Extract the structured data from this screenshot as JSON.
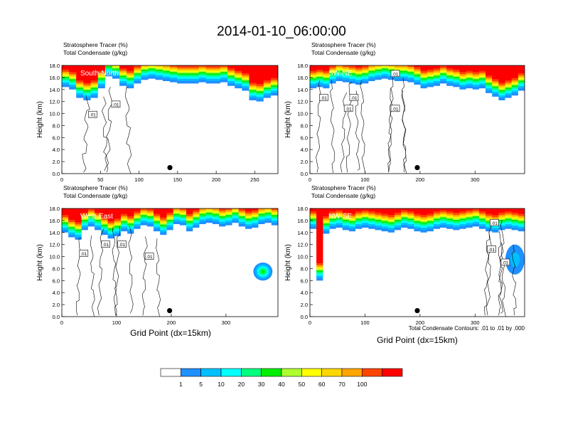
{
  "title": "2014-01-10_06:00:00",
  "variable_lines": [
    "Stratosphere Tracer   (%)",
    "Total Condensate   (g/kg)"
  ],
  "ylabel": "Height (km)",
  "xlabel": "Grid Point (dx=15km)",
  "contour_note": "Total Condensate Contours: .01 to .01 by .000",
  "colors": {
    "bins": [
      "#ffffff",
      "#1e90ff",
      "#00bfff",
      "#00ffff",
      "#00ff7f",
      "#00ee00",
      "#adff2f",
      "#ffff00",
      "#ffd700",
      "#ffa500",
      "#ff4500",
      "#ff0000"
    ],
    "contour": "#000000",
    "marker": "#000000"
  },
  "colorbar": {
    "labels": [
      "1",
      "5",
      "10",
      "20",
      "30",
      "40",
      "50",
      "60",
      "70",
      "100"
    ]
  },
  "chart_data": [
    {
      "type": "heatmap",
      "panel": "South-North",
      "yticks": [
        "0.0",
        "2.0",
        "4.0",
        "6.0",
        "8.0",
        "10.0",
        "12.0",
        "14.0",
        "16.0",
        "18.0"
      ],
      "xticks": [
        "0",
        "50",
        "100",
        "150",
        "200",
        "250"
      ],
      "xlim": [
        0,
        280
      ],
      "ylim": [
        0,
        18
      ],
      "marker": {
        "x": 140,
        "y": 1.0
      },
      "contour_labels": [
        {
          "x": 40,
          "y": 9.8,
          "text": ".01"
        },
        {
          "x": 70,
          "y": 11.5,
          "text": ".01"
        }
      ],
      "tracer_base_km": [
        14.4,
        14.0,
        12.6,
        12.2,
        12.6,
        14.2,
        16.2,
        15.8,
        14.6,
        14.2,
        15.0,
        15.6,
        15.8,
        15.6,
        15.4,
        15.2,
        15.0,
        15.0,
        15.0,
        15.2,
        15.0,
        15.0,
        15.2,
        14.6,
        14.2,
        13.8,
        12.2,
        12.0,
        12.6,
        13.0
      ]
    },
    {
      "type": "heatmap",
      "panel": "SW-NE",
      "yticks": [
        "0.0",
        "2.0",
        "4.0",
        "6.0",
        "8.0",
        "10.0",
        "12.0",
        "14.0",
        "16.0",
        "18.0"
      ],
      "xticks": [
        "0",
        "100",
        "200",
        "300"
      ],
      "xlim": [
        0,
        390
      ],
      "ylim": [
        0,
        18
      ],
      "marker": {
        "x": 195,
        "y": 1.0
      },
      "contour_labels": [
        {
          "x": 25,
          "y": 12.6,
          "text": ".01"
        },
        {
          "x": 80,
          "y": 12.6,
          "text": ".01"
        },
        {
          "x": 70,
          "y": 10.8,
          "text": ".01"
        },
        {
          "x": 155,
          "y": 16.6,
          "text": ".01"
        },
        {
          "x": 155,
          "y": 10.8,
          "text": ".01"
        }
      ],
      "tracer_base_km": [
        14.2,
        14.4,
        14.2,
        15.0,
        15.4,
        15.2,
        15.0,
        14.8,
        15.0,
        15.4,
        15.6,
        15.8,
        15.6,
        15.4,
        15.4,
        15.2,
        14.8,
        14.2,
        14.4,
        14.6,
        15.0,
        14.6,
        14.4,
        14.0,
        14.2,
        14.0,
        14.2,
        13.4,
        12.8,
        12.2,
        12.6,
        13.0,
        13.8
      ]
    },
    {
      "type": "heatmap",
      "panel": "West-East",
      "yticks": [
        "0.0",
        "2.0",
        "4.0",
        "6.0",
        "8.0",
        "10.0",
        "12.0",
        "14.0",
        "16.0",
        "18.0"
      ],
      "xticks": [
        "0",
        "100",
        "200",
        "300"
      ],
      "xlim": [
        0,
        395
      ],
      "ylim": [
        0,
        18
      ],
      "marker": {
        "x": 197,
        "y": 1.0
      },
      "contour_labels": [
        {
          "x": 40,
          "y": 10.5,
          "text": ".01"
        },
        {
          "x": 80,
          "y": 12.0,
          "text": ".01"
        },
        {
          "x": 110,
          "y": 12.0,
          "text": ".01"
        },
        {
          "x": 160,
          "y": 10.0,
          "text": ".01"
        }
      ],
      "tracer_base_km": [
        14.0,
        13.2,
        12.8,
        14.4,
        15.0,
        14.4,
        13.6,
        13.0,
        13.4,
        14.2,
        13.8,
        14.6,
        15.2,
        15.0,
        14.2,
        13.6,
        14.4,
        15.4,
        15.2,
        14.2,
        14.8,
        15.4,
        15.6,
        15.4,
        15.0,
        15.2,
        15.6,
        15.0,
        14.6,
        14.8,
        15.4,
        15.6,
        15.2
      ],
      "patches": [
        {
          "x": [
            350,
            385
          ],
          "y": [
            6.0,
            9.0
          ],
          "peak": 30
        }
      ]
    },
    {
      "type": "heatmap",
      "panel": "NW-SE",
      "yticks": [
        "0.0",
        "2.0",
        "4.0",
        "6.0",
        "8.0",
        "10.0",
        "12.0",
        "14.0",
        "16.0",
        "18.0"
      ],
      "xticks": [
        "0",
        "100",
        "200",
        "300"
      ],
      "xlim": [
        0,
        390
      ],
      "ylim": [
        0,
        18
      ],
      "marker": {
        "x": 195,
        "y": 1.0
      },
      "contour_labels": [
        {
          "x": 335,
          "y": 15.6,
          "text": ".01"
        },
        {
          "x": 330,
          "y": 11.2,
          "text": ".01"
        },
        {
          "x": 355,
          "y": 9.0,
          "text": ".01"
        }
      ],
      "tracer_base_km": [
        14.6,
        6.0,
        13.8,
        14.6,
        14.8,
        14.4,
        14.2,
        14.6,
        14.8,
        14.6,
        14.4,
        14.2,
        14.0,
        14.4,
        14.8,
        14.6,
        14.2,
        14.0,
        14.2,
        14.6,
        14.8,
        14.6,
        14.4,
        14.6,
        14.8,
        15.0,
        14.6,
        14.2,
        14.0,
        14.4,
        14.6,
        14.4,
        14.2
      ],
      "patches": [
        {
          "x": [
            355,
            390
          ],
          "y": [
            7.0,
            12.0
          ],
          "peak": 10
        }
      ]
    }
  ]
}
